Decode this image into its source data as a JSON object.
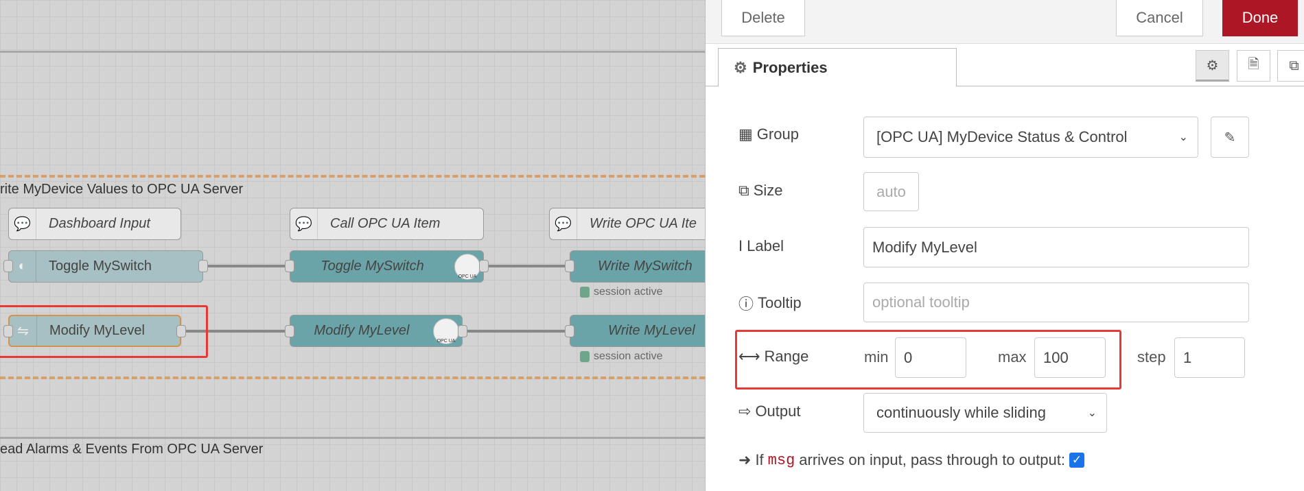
{
  "canvas": {
    "groups": [
      {
        "label": "rite MyDevice Values to OPC UA Server"
      },
      {
        "label": "ead Alarms & Events From OPC UA Server"
      }
    ],
    "nodes": {
      "comment_dashboard": "Dashboard Input",
      "comment_call": "Call OPC UA Item",
      "comment_write": "Write OPC UA Ite",
      "switch": "Toggle MySwitch",
      "opc_toggle": "Toggle MySwitch",
      "write_switch": "Write MySwitch",
      "slider": "Modify MyLevel",
      "opc_modify": "Modify MyLevel",
      "write_level": "Write MyLevel",
      "opc_badge": "OPC UA"
    },
    "status": [
      "session active",
      "session active"
    ]
  },
  "panel": {
    "delete": "Delete",
    "cancel": "Cancel",
    "done": "Done",
    "tab": "Properties",
    "fields": {
      "group": {
        "label": "Group",
        "value": "[OPC UA] MyDevice Status & Control"
      },
      "size": {
        "label": "Size",
        "value": "auto"
      },
      "label": {
        "label": "Label",
        "value": "Modify MyLevel"
      },
      "tooltip": {
        "label": "Tooltip",
        "placeholder": "optional tooltip"
      },
      "range": {
        "label": "Range",
        "min_label": "min",
        "min": "0",
        "max_label": "max",
        "max": "100",
        "step_label": "step",
        "step": "1"
      },
      "output": {
        "label": "Output",
        "value": "continuously while sliding"
      },
      "passthrough": {
        "prefix": "If",
        "code": "msg",
        "suffix": "arrives on input, pass through to output:",
        "checked": true
      }
    }
  },
  "colors": {
    "done": "#ad1625",
    "highlight": "#e53935",
    "node_teal": "#6ba4a8",
    "group_border": "#d5a06a"
  }
}
